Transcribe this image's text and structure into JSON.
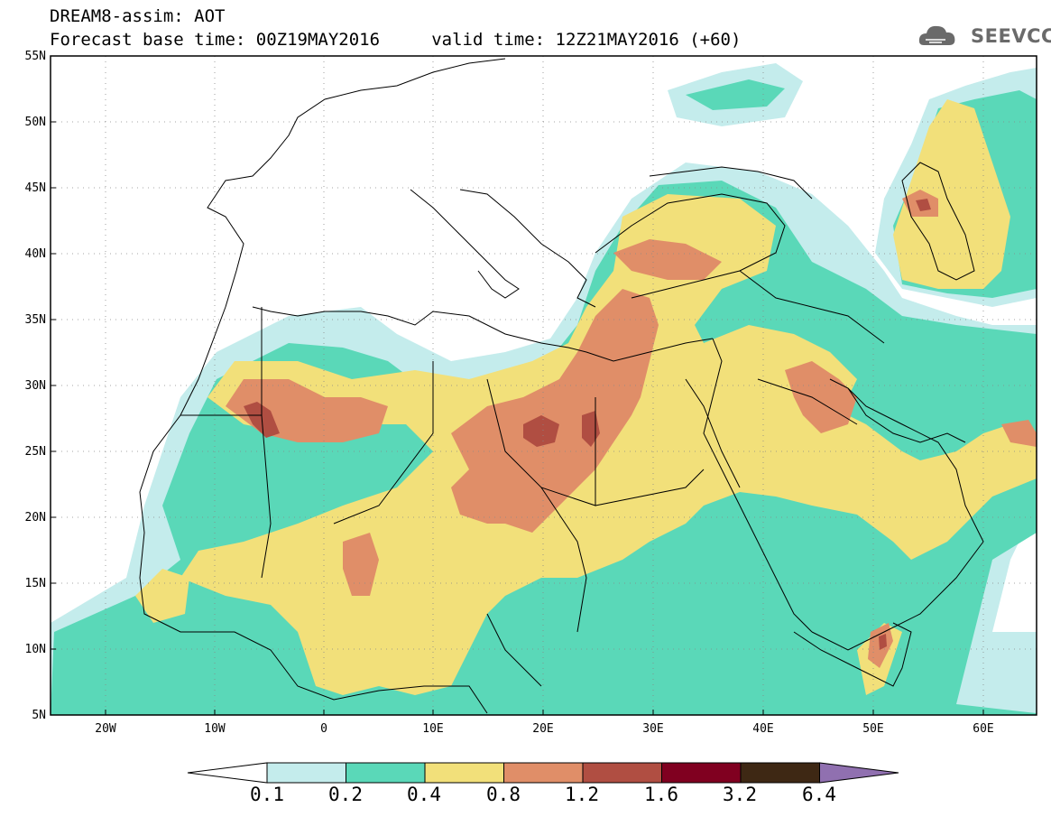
{
  "header": {
    "line1": "DREAM8-assim: AOT",
    "line2": "Forecast base time: 00Z19MAY2016     valid time: 12Z21MAY2016 (+60)"
  },
  "logo": {
    "text": "SEEVCCC",
    "icon": "cloud-icon"
  },
  "axes": {
    "y_labels": [
      "55N",
      "50N",
      "45N",
      "40N",
      "35N",
      "30N",
      "25N",
      "20N",
      "15N",
      "10N",
      "5N"
    ],
    "x_labels": [
      "20W",
      "10W",
      "0",
      "10E",
      "20E",
      "30E",
      "40E",
      "50E",
      "60E"
    ]
  },
  "colorbar": {
    "labels": [
      "0.1",
      "0.2",
      "0.4",
      "0.8",
      "1.2",
      "1.6",
      "3.2",
      "6.4"
    ],
    "colors": [
      "#ffffff",
      "#c4ecec",
      "#5ad8b8",
      "#f2e07a",
      "#e08e68",
      "#b04e42",
      "#800020",
      "#3e2814",
      "#9070b0"
    ]
  },
  "palette": {
    "c1": "#c4ecec",
    "c2": "#5ad8b8",
    "c3": "#f2e07a",
    "c4": "#e08e68",
    "c5": "#b04e42"
  }
}
